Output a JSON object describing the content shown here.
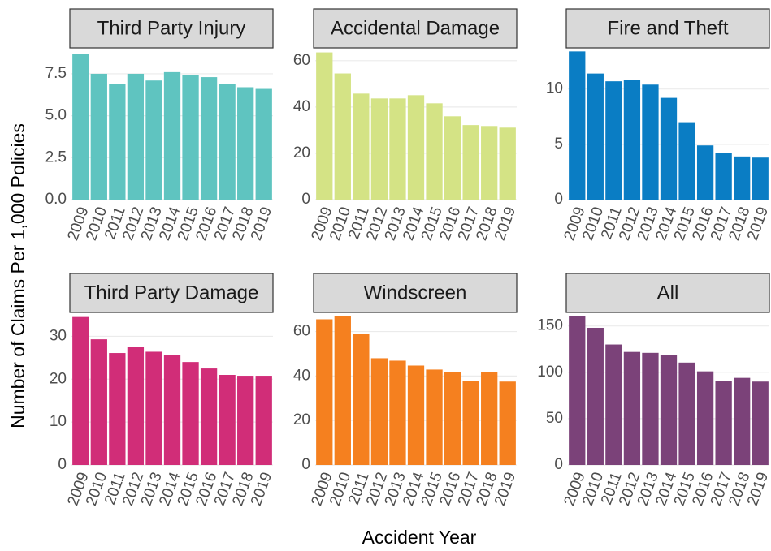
{
  "ylabel": "Number of Claims Per 1,000 Policies",
  "xlabel": "Accident Year",
  "chart_data": [
    {
      "type": "bar",
      "title": "Third Party Injury",
      "color": "#5fc4c0",
      "categories": [
        "2009",
        "2010",
        "2011",
        "2012",
        "2013",
        "2014",
        "2015",
        "2016",
        "2017",
        "2018",
        "2019"
      ],
      "values": [
        8.7,
        7.5,
        6.9,
        7.5,
        7.1,
        7.6,
        7.4,
        7.3,
        6.9,
        6.7,
        6.6
      ],
      "ylim": [
        0,
        8.9
      ],
      "yticks": [
        {
          "value": 0,
          "label": "0.0"
        },
        2.5,
        {
          "value": 5,
          "label": "5.0"
        },
        7.5
      ],
      "grid": true
    },
    {
      "type": "bar",
      "title": "Accidental Damage",
      "color": "#d4e385",
      "categories": [
        "2009",
        "2010",
        "2011",
        "2012",
        "2013",
        "2014",
        "2015",
        "2016",
        "2017",
        "2018",
        "2019"
      ],
      "values": [
        63.6,
        54.5,
        45.8,
        43.7,
        43.7,
        45.1,
        41.6,
        36,
        32.2,
        31.8,
        31.1
      ],
      "ylim": [
        0,
        64.5
      ],
      "yticks": [
        0,
        20,
        40,
        60
      ],
      "grid": true
    },
    {
      "type": "bar",
      "title": "Fire and Theft",
      "color": "#0a7dc4",
      "categories": [
        "2009",
        "2010",
        "2011",
        "2012",
        "2013",
        "2014",
        "2015",
        "2016",
        "2017",
        "2018",
        "2019"
      ],
      "values": [
        13.4,
        11.4,
        10.7,
        10.8,
        10.4,
        9.2,
        7.0,
        4.9,
        4.2,
        3.9,
        3.8
      ],
      "ylim": [
        0,
        13.5
      ],
      "yticks": [
        0,
        5,
        10
      ],
      "grid": true
    },
    {
      "type": "bar",
      "title": "Third Party Damage",
      "color": "#d12d78",
      "categories": [
        "2009",
        "2010",
        "2011",
        "2012",
        "2013",
        "2014",
        "2015",
        "2016",
        "2017",
        "2018",
        "2019"
      ],
      "values": [
        34.5,
        29.3,
        26.1,
        27.6,
        26.4,
        25.7,
        24.0,
        22.5,
        21.0,
        20.8,
        20.8
      ],
      "ylim": [
        0,
        35
      ],
      "yticks": [
        0,
        10,
        20,
        30
      ],
      "grid": true
    },
    {
      "type": "bar",
      "title": "Windscreen",
      "color": "#f5801f",
      "categories": [
        "2009",
        "2010",
        "2011",
        "2012",
        "2013",
        "2014",
        "2015",
        "2016",
        "2017",
        "2018",
        "2019"
      ],
      "values": [
        65.5,
        66.9,
        58.9,
        48,
        46.9,
        44.7,
        42.9,
        41.8,
        37.8,
        41.8,
        37.5
      ],
      "ylim": [
        0,
        67.5
      ],
      "yticks": [
        0,
        20,
        40,
        60
      ],
      "grid": true
    },
    {
      "type": "bar",
      "title": "All",
      "color": "#7b4279",
      "categories": [
        "2009",
        "2010",
        "2011",
        "2012",
        "2013",
        "2014",
        "2015",
        "2016",
        "2017",
        "2018",
        "2019"
      ],
      "values": [
        161,
        148,
        130,
        122,
        121,
        119,
        110.5,
        101,
        91,
        94,
        90
      ],
      "ylim": [
        0,
        162
      ],
      "yticks": [
        0,
        50,
        100,
        150
      ],
      "grid": true
    }
  ]
}
